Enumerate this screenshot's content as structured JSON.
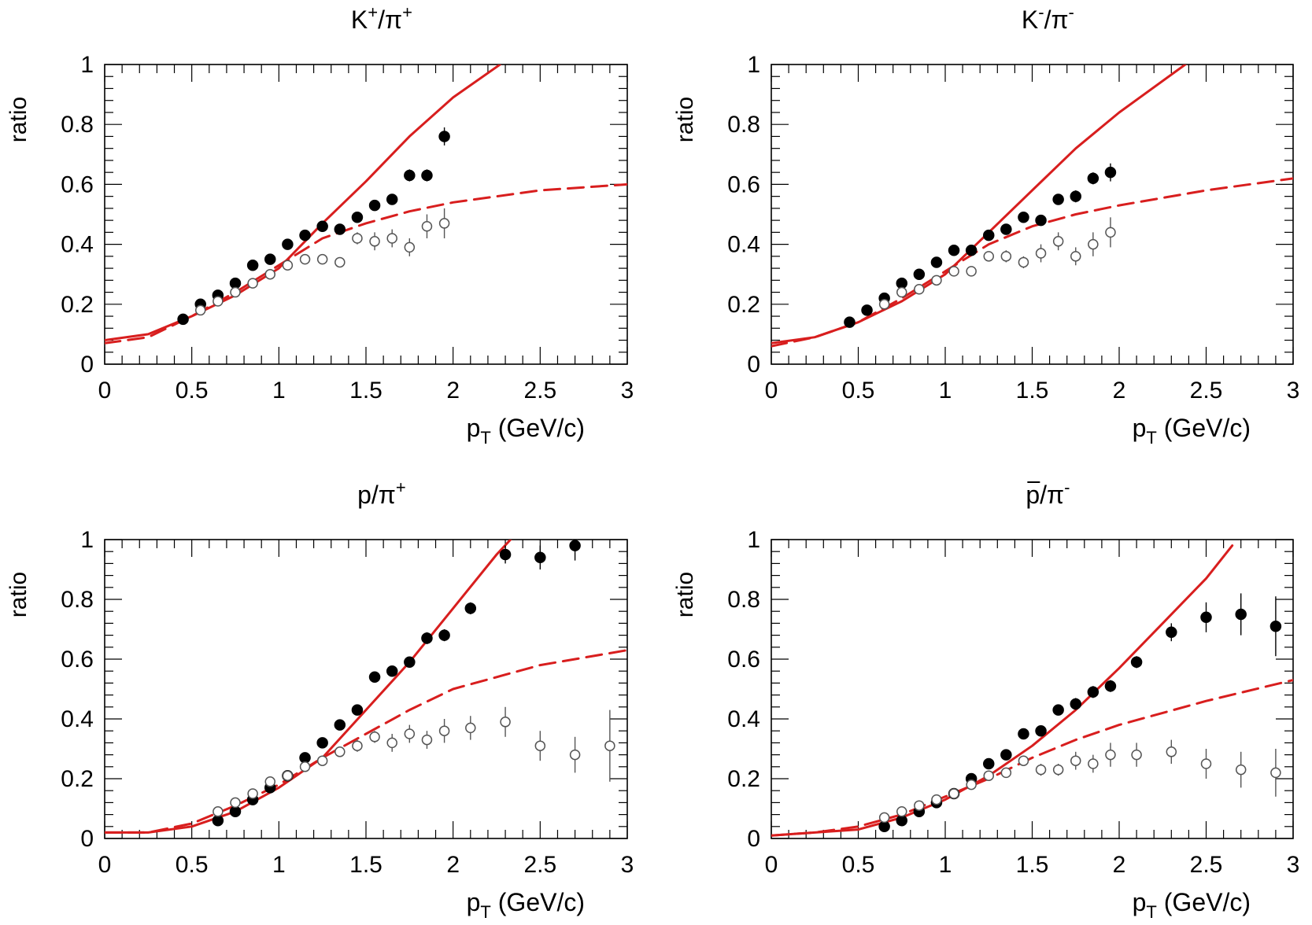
{
  "colors": {
    "curve": "#d81e1e",
    "axis": "#000000",
    "filled": "#000000",
    "open": "#555555"
  },
  "chart_data": [
    {
      "type": "scatter",
      "title": {
        "base": "K",
        "sup": "+",
        "mid": "/π",
        "sup2": "+",
        "overline": false
      },
      "xlabel": {
        "main": "p",
        "sub": "T",
        "rest": " (GeV/c)"
      },
      "ylabel": "ratio",
      "xlim": [
        0,
        3
      ],
      "ylim": [
        0,
        1
      ],
      "xticks": [
        "0",
        "0.5",
        "1",
        "1.5",
        "2",
        "2.5",
        "3"
      ],
      "yticks": [
        "0",
        "0.2",
        "0.4",
        "0.6",
        "0.8",
        "1"
      ],
      "series": [
        {
          "marker": "filled-circle",
          "x": [
            0.45,
            0.55,
            0.65,
            0.75,
            0.85,
            0.95,
            1.05,
            1.15,
            1.25,
            1.35,
            1.45,
            1.55,
            1.65,
            1.75,
            1.85,
            1.95
          ],
          "y": [
            0.15,
            0.2,
            0.23,
            0.27,
            0.33,
            0.35,
            0.4,
            0.43,
            0.46,
            0.45,
            0.49,
            0.53,
            0.55,
            0.63,
            0.63,
            0.76
          ],
          "err": [
            0.01,
            0.01,
            0.01,
            0.01,
            0.01,
            0.01,
            0.01,
            0.01,
            0.01,
            0.01,
            0.01,
            0.01,
            0.01,
            0.02,
            0.02,
            0.03
          ]
        },
        {
          "marker": "open-circle",
          "x": [
            0.55,
            0.65,
            0.75,
            0.85,
            0.95,
            1.05,
            1.15,
            1.25,
            1.35,
            1.45,
            1.55,
            1.65,
            1.75,
            1.85,
            1.95
          ],
          "y": [
            0.18,
            0.21,
            0.24,
            0.27,
            0.3,
            0.33,
            0.35,
            0.35,
            0.34,
            0.42,
            0.41,
            0.42,
            0.39,
            0.46,
            0.47
          ],
          "err": [
            0.01,
            0.01,
            0.01,
            0.01,
            0.01,
            0.01,
            0.01,
            0.01,
            0.01,
            0.02,
            0.03,
            0.03,
            0.03,
            0.04,
            0.05
          ]
        },
        {
          "line": "solid",
          "x": [
            0,
            0.25,
            0.5,
            0.75,
            1.0,
            1.25,
            1.5,
            1.75,
            2.0,
            2.27
          ],
          "y": [
            0.08,
            0.1,
            0.16,
            0.23,
            0.32,
            0.47,
            0.61,
            0.76,
            0.89,
            1.0
          ]
        },
        {
          "line": "dashed",
          "x": [
            0,
            0.25,
            0.5,
            0.75,
            1.0,
            1.25,
            1.5,
            1.75,
            2.0,
            2.5,
            3.0
          ],
          "y": [
            0.07,
            0.09,
            0.16,
            0.24,
            0.33,
            0.42,
            0.47,
            0.51,
            0.54,
            0.58,
            0.6
          ]
        }
      ]
    },
    {
      "type": "scatter",
      "title": {
        "base": "K",
        "sup": "-",
        "mid": "/π",
        "sup2": "-",
        "overline": false
      },
      "xlabel": {
        "main": "p",
        "sub": "T",
        "rest": " (GeV/c)"
      },
      "ylabel": "ratio",
      "xlim": [
        0,
        3
      ],
      "ylim": [
        0,
        1
      ],
      "xticks": [
        "0",
        "0.5",
        "1",
        "1.5",
        "2",
        "2.5",
        "3"
      ],
      "yticks": [
        "0",
        "0.2",
        "0.4",
        "0.6",
        "0.8",
        "1"
      ],
      "series": [
        {
          "marker": "filled-circle",
          "x": [
            0.45,
            0.55,
            0.65,
            0.75,
            0.85,
            0.95,
            1.05,
            1.15,
            1.25,
            1.35,
            1.45,
            1.55,
            1.65,
            1.75,
            1.85,
            1.95
          ],
          "y": [
            0.14,
            0.18,
            0.22,
            0.27,
            0.3,
            0.34,
            0.38,
            0.38,
            0.43,
            0.45,
            0.49,
            0.48,
            0.55,
            0.56,
            0.62,
            0.64
          ],
          "err": [
            0.01,
            0.01,
            0.01,
            0.01,
            0.01,
            0.01,
            0.01,
            0.01,
            0.01,
            0.01,
            0.01,
            0.01,
            0.01,
            0.02,
            0.02,
            0.03
          ]
        },
        {
          "marker": "open-circle",
          "x": [
            0.65,
            0.75,
            0.85,
            0.95,
            1.05,
            1.15,
            1.25,
            1.35,
            1.45,
            1.55,
            1.65,
            1.75,
            1.85,
            1.95
          ],
          "y": [
            0.2,
            0.24,
            0.25,
            0.28,
            0.31,
            0.31,
            0.36,
            0.36,
            0.34,
            0.37,
            0.41,
            0.36,
            0.4,
            0.44
          ],
          "err": [
            0.01,
            0.01,
            0.01,
            0.01,
            0.01,
            0.01,
            0.01,
            0.02,
            0.02,
            0.03,
            0.03,
            0.03,
            0.04,
            0.05
          ]
        },
        {
          "line": "solid",
          "x": [
            0,
            0.25,
            0.5,
            0.75,
            1.0,
            1.25,
            1.5,
            1.75,
            2.0,
            2.38
          ],
          "y": [
            0.07,
            0.09,
            0.14,
            0.21,
            0.3,
            0.44,
            0.58,
            0.72,
            0.84,
            1.0
          ]
        },
        {
          "line": "dashed",
          "x": [
            0,
            0.25,
            0.5,
            0.75,
            1.0,
            1.25,
            1.5,
            1.75,
            2.0,
            2.5,
            3.0
          ],
          "y": [
            0.06,
            0.09,
            0.14,
            0.22,
            0.31,
            0.4,
            0.46,
            0.5,
            0.53,
            0.58,
            0.62
          ]
        }
      ]
    },
    {
      "type": "scatter",
      "title": {
        "base": "p",
        "sup": "",
        "mid": "/π",
        "sup2": "+",
        "overline": false
      },
      "xlabel": {
        "main": "p",
        "sub": "T",
        "rest": " (GeV/c)"
      },
      "ylabel": "ratio",
      "xlim": [
        0,
        3
      ],
      "ylim": [
        0,
        1
      ],
      "xticks": [
        "0",
        "0.5",
        "1",
        "1.5",
        "2",
        "2.5",
        "3"
      ],
      "yticks": [
        "0",
        "0.2",
        "0.4",
        "0.6",
        "0.8",
        "1"
      ],
      "series": [
        {
          "marker": "filled-circle",
          "x": [
            0.65,
            0.75,
            0.85,
            0.95,
            1.05,
            1.15,
            1.25,
            1.35,
            1.45,
            1.55,
            1.65,
            1.75,
            1.85,
            1.95,
            2.1,
            2.3,
            2.5,
            2.7
          ],
          "y": [
            0.06,
            0.09,
            0.13,
            0.17,
            0.21,
            0.27,
            0.32,
            0.38,
            0.43,
            0.54,
            0.56,
            0.59,
            0.67,
            0.68,
            0.77,
            0.95,
            0.94,
            0.98
          ],
          "err": [
            0.01,
            0.01,
            0.01,
            0.01,
            0.01,
            0.01,
            0.01,
            0.01,
            0.01,
            0.01,
            0.01,
            0.01,
            0.02,
            0.02,
            0.02,
            0.03,
            0.04,
            0.05
          ]
        },
        {
          "marker": "open-circle",
          "x": [
            0.65,
            0.75,
            0.85,
            0.95,
            1.05,
            1.15,
            1.25,
            1.35,
            1.45,
            1.55,
            1.65,
            1.75,
            1.85,
            1.95,
            2.1,
            2.3,
            2.5,
            2.7,
            2.9
          ],
          "y": [
            0.09,
            0.12,
            0.15,
            0.19,
            0.21,
            0.24,
            0.26,
            0.29,
            0.31,
            0.34,
            0.32,
            0.35,
            0.33,
            0.36,
            0.37,
            0.39,
            0.31,
            0.28,
            0.31
          ],
          "err": [
            0.01,
            0.01,
            0.01,
            0.01,
            0.01,
            0.01,
            0.01,
            0.01,
            0.02,
            0.02,
            0.03,
            0.03,
            0.03,
            0.04,
            0.04,
            0.05,
            0.05,
            0.06,
            0.12
          ]
        },
        {
          "line": "solid",
          "x": [
            0,
            0.25,
            0.5,
            0.75,
            1.0,
            1.25,
            1.5,
            1.75,
            2.0,
            2.25,
            2.33
          ],
          "y": [
            0.02,
            0.02,
            0.04,
            0.09,
            0.17,
            0.27,
            0.43,
            0.59,
            0.77,
            0.95,
            1.0
          ]
        },
        {
          "line": "dashed",
          "x": [
            0,
            0.25,
            0.5,
            0.75,
            1.0,
            1.25,
            1.5,
            1.75,
            2.0,
            2.5,
            3.0
          ],
          "y": [
            0.02,
            0.02,
            0.05,
            0.11,
            0.18,
            0.27,
            0.35,
            0.43,
            0.5,
            0.58,
            0.63
          ]
        }
      ]
    },
    {
      "type": "scatter",
      "title": {
        "base": "p",
        "sup": "",
        "mid": "/π",
        "sup2": "-",
        "overline": true
      },
      "xlabel": {
        "main": "p",
        "sub": "T",
        "rest": " (GeV/c)"
      },
      "ylabel": "ratio",
      "xlim": [
        0,
        3
      ],
      "ylim": [
        0,
        1
      ],
      "xticks": [
        "0",
        "0.5",
        "1",
        "1.5",
        "2",
        "2.5",
        "3"
      ],
      "yticks": [
        "0",
        "0.2",
        "0.4",
        "0.6",
        "0.8",
        "1"
      ],
      "series": [
        {
          "marker": "filled-circle",
          "x": [
            0.65,
            0.75,
            0.85,
            0.95,
            1.05,
            1.15,
            1.25,
            1.35,
            1.45,
            1.55,
            1.65,
            1.75,
            1.85,
            1.95,
            2.1,
            2.3,
            2.5,
            2.7,
            2.9
          ],
          "y": [
            0.04,
            0.06,
            0.09,
            0.12,
            0.15,
            0.2,
            0.25,
            0.28,
            0.35,
            0.36,
            0.43,
            0.45,
            0.49,
            0.51,
            0.59,
            0.69,
            0.74,
            0.75,
            0.71
          ],
          "err": [
            0.01,
            0.01,
            0.01,
            0.01,
            0.01,
            0.01,
            0.01,
            0.01,
            0.01,
            0.01,
            0.01,
            0.02,
            0.02,
            0.02,
            0.02,
            0.03,
            0.05,
            0.07,
            0.1
          ]
        },
        {
          "marker": "open-circle",
          "x": [
            0.65,
            0.75,
            0.85,
            0.95,
            1.05,
            1.15,
            1.25,
            1.35,
            1.45,
            1.55,
            1.65,
            1.75,
            1.85,
            1.95,
            2.1,
            2.3,
            2.5,
            2.7,
            2.9
          ],
          "y": [
            0.07,
            0.09,
            0.11,
            0.13,
            0.15,
            0.18,
            0.21,
            0.22,
            0.26,
            0.23,
            0.23,
            0.26,
            0.25,
            0.28,
            0.28,
            0.29,
            0.25,
            0.23,
            0.22
          ],
          "err": [
            0.01,
            0.01,
            0.01,
            0.01,
            0.01,
            0.01,
            0.01,
            0.01,
            0.01,
            0.02,
            0.02,
            0.03,
            0.03,
            0.04,
            0.04,
            0.04,
            0.05,
            0.06,
            0.08
          ]
        },
        {
          "line": "solid",
          "x": [
            0,
            0.25,
            0.5,
            0.75,
            1.0,
            1.25,
            1.5,
            1.75,
            2.0,
            2.25,
            2.5,
            2.65
          ],
          "y": [
            0.01,
            0.02,
            0.03,
            0.07,
            0.13,
            0.21,
            0.31,
            0.43,
            0.57,
            0.72,
            0.87,
            0.98
          ]
        },
        {
          "line": "dashed",
          "x": [
            0,
            0.25,
            0.5,
            0.75,
            1.0,
            1.25,
            1.5,
            1.75,
            2.0,
            2.5,
            3.0
          ],
          "y": [
            0.01,
            0.02,
            0.04,
            0.08,
            0.14,
            0.2,
            0.27,
            0.33,
            0.38,
            0.46,
            0.53
          ]
        }
      ]
    }
  ]
}
